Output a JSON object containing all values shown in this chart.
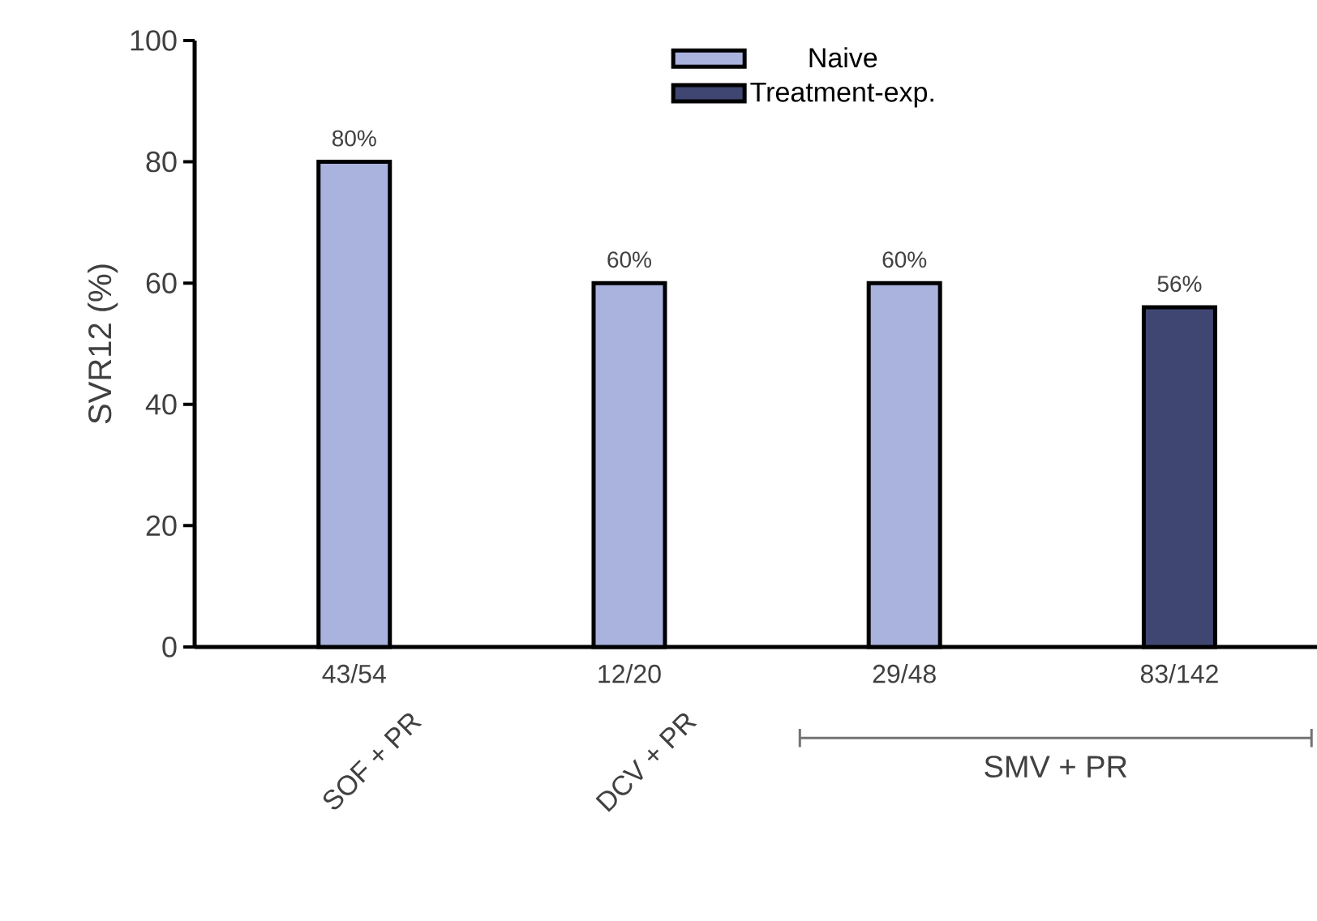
{
  "chart_data": {
    "type": "bar",
    "ylabel": "SVR12 (%)",
    "categories": [
      "43/54",
      "12/20",
      "29/48",
      "83/142"
    ],
    "series": [
      {
        "name": "Naive",
        "color": "#aab2de",
        "values": [
          80,
          60,
          60,
          null
        ],
        "value_labels": [
          "80%",
          "60%",
          "60%",
          null
        ]
      },
      {
        "name": "Treatment-exp.",
        "color": "#3f4672",
        "values": [
          null,
          null,
          null,
          56
        ],
        "value_labels": [
          null,
          null,
          null,
          "56%"
        ]
      }
    ],
    "ylim": [
      0,
      100
    ],
    "yticks": [
      0,
      20,
      40,
      60,
      80,
      100
    ],
    "grid": false,
    "legend": "top",
    "annotations": [
      "SOF + PR",
      "DCV + PR",
      "SMV + PR"
    ]
  }
}
